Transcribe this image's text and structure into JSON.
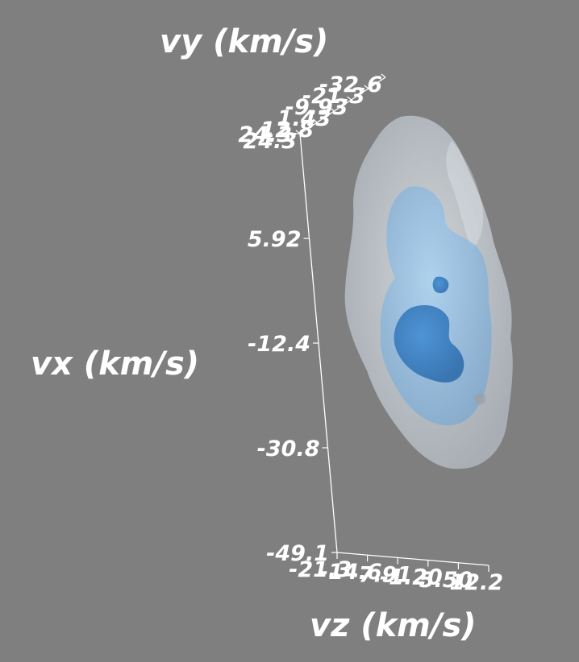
{
  "chart_data": {
    "type": "volume-isosurface",
    "axes": {
      "vx": {
        "label": "vx (km/s)",
        "ticks": [
          "24.3",
          "5.92",
          "-12.4",
          "-30.8",
          "-49.1"
        ]
      },
      "vy": {
        "label": "vy (km/s)",
        "ticks": [
          "24.3",
          "12.8",
          "1.43",
          "-9.93",
          "-21.3",
          "-32.6"
        ]
      },
      "vz": {
        "label": "vz (km/s)",
        "ticks": [
          "-21.3",
          "-14.6",
          "-7.91",
          "-1.20",
          "5.50",
          "12.2"
        ]
      }
    },
    "isosurfaces": [
      {
        "level": "outer",
        "color": "#dde5ec",
        "opacity": 0.55
      },
      {
        "level": "middle",
        "color": "#8fbde3",
        "opacity": 0.55
      },
      {
        "level": "inner",
        "color": "#3a7fc4",
        "opacity": 0.75
      }
    ],
    "background": "#7f7f7f"
  }
}
